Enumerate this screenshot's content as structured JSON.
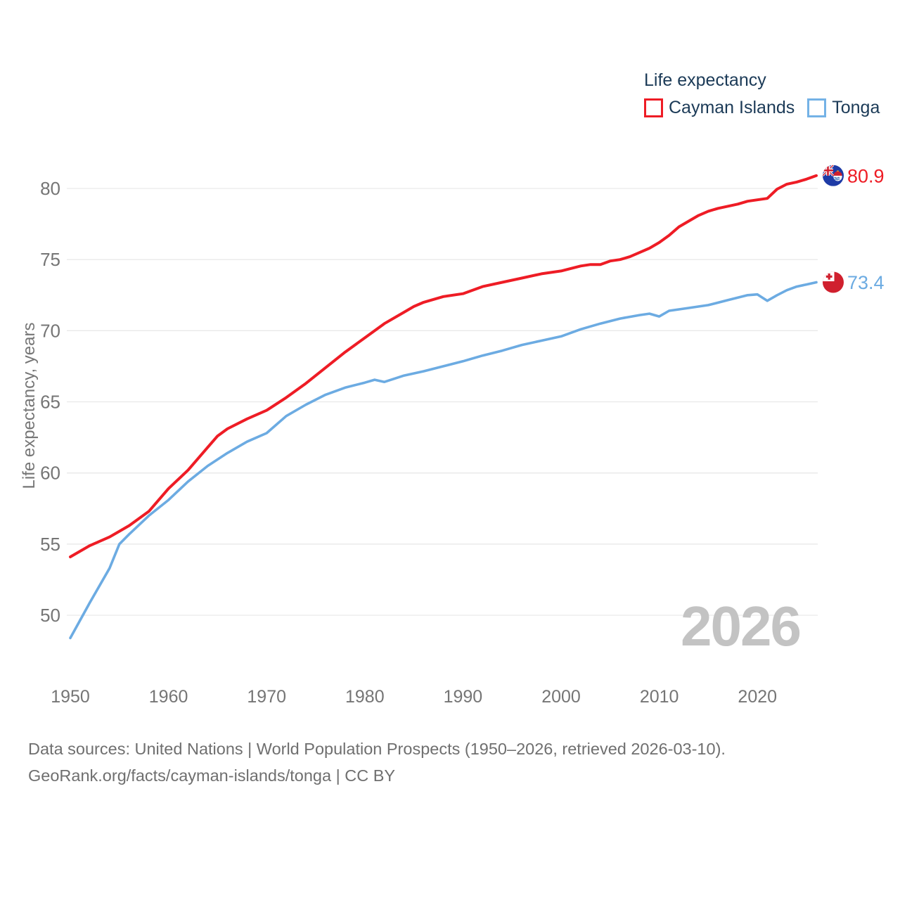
{
  "legend": {
    "title": "Life expectancy",
    "items": [
      {
        "label": "Cayman Islands",
        "color": "#ee1c25"
      },
      {
        "label": "Tonga",
        "color": "#74b2e6"
      }
    ]
  },
  "y_axis": {
    "title": "Life expectancy, years",
    "ticks": [
      50,
      55,
      60,
      65,
      70,
      75,
      80
    ]
  },
  "x_axis": {
    "ticks": [
      1950,
      1960,
      1970,
      1980,
      1990,
      2000,
      2010,
      2020
    ]
  },
  "watermark": "2026",
  "footer": {
    "line1": "Data sources: United Nations | World Population Prospects (1950–2026, retrieved 2026-03-10).",
    "line2": "GeoRank.org/facts/cayman-islands/tonga | CC BY"
  },
  "colors": {
    "cayman_line": "#ee1c25",
    "tonga_line": "#6cabe2",
    "legend_text": "#1b3a57",
    "tick_text": "#757575",
    "gridline": "#e9e9e9",
    "watermark": "#c3c3c3",
    "footer_text": "#6f6f6f"
  },
  "chart_data": {
    "type": "line",
    "title": "Life expectancy",
    "xlabel": "",
    "ylabel": "Life expectancy, years",
    "xlim": [
      1950,
      2026
    ],
    "ylim": [
      47,
      82
    ],
    "grid": true,
    "legend_position": "top-right",
    "series": [
      {
        "name": "Cayman Islands",
        "color": "#ee1c25",
        "end_label": "80.9",
        "end_year": 2026,
        "flag_icon": "cayman-islands-flag-icon",
        "points": [
          [
            1950,
            54.1
          ],
          [
            1952,
            54.9
          ],
          [
            1954,
            55.5
          ],
          [
            1956,
            56.3
          ],
          [
            1958,
            57.3
          ],
          [
            1960,
            58.9
          ],
          [
            1962,
            60.2
          ],
          [
            1964,
            61.8
          ],
          [
            1965,
            62.6
          ],
          [
            1966,
            63.1
          ],
          [
            1968,
            63.8
          ],
          [
            1970,
            64.4
          ],
          [
            1972,
            65.3
          ],
          [
            1974,
            66.3
          ],
          [
            1976,
            67.4
          ],
          [
            1978,
            68.5
          ],
          [
            1980,
            69.5
          ],
          [
            1982,
            70.5
          ],
          [
            1984,
            71.3
          ],
          [
            1985,
            71.7
          ],
          [
            1986,
            72.0
          ],
          [
            1988,
            72.4
          ],
          [
            1990,
            72.6
          ],
          [
            1992,
            73.1
          ],
          [
            1994,
            73.4
          ],
          [
            1996,
            73.7
          ],
          [
            1998,
            74.0
          ],
          [
            2000,
            74.2
          ],
          [
            2002,
            74.55
          ],
          [
            2003,
            74.65
          ],
          [
            2004,
            74.65
          ],
          [
            2005,
            74.9
          ],
          [
            2006,
            75.0
          ],
          [
            2007,
            75.2
          ],
          [
            2008,
            75.5
          ],
          [
            2009,
            75.8
          ],
          [
            2010,
            76.2
          ],
          [
            2011,
            76.7
          ],
          [
            2012,
            77.3
          ],
          [
            2013,
            77.7
          ],
          [
            2014,
            78.1
          ],
          [
            2015,
            78.4
          ],
          [
            2016,
            78.6
          ],
          [
            2017,
            78.75
          ],
          [
            2018,
            78.9
          ],
          [
            2019,
            79.1
          ],
          [
            2020,
            79.2
          ],
          [
            2021,
            79.3
          ],
          [
            2022,
            79.95
          ],
          [
            2023,
            80.3
          ],
          [
            2024,
            80.45
          ],
          [
            2025,
            80.65
          ],
          [
            2026,
            80.9
          ]
        ]
      },
      {
        "name": "Tonga",
        "color": "#6cabe2",
        "end_label": "73.4",
        "end_year": 2026,
        "flag_icon": "tonga-flag-icon",
        "points": [
          [
            1950,
            48.4
          ],
          [
            1952,
            50.9
          ],
          [
            1954,
            53.3
          ],
          [
            1955,
            55.0
          ],
          [
            1956,
            55.7
          ],
          [
            1958,
            57.0
          ],
          [
            1960,
            58.1
          ],
          [
            1962,
            59.4
          ],
          [
            1964,
            60.5
          ],
          [
            1966,
            61.4
          ],
          [
            1968,
            62.2
          ],
          [
            1970,
            62.8
          ],
          [
            1972,
            64.0
          ],
          [
            1974,
            64.8
          ],
          [
            1976,
            65.5
          ],
          [
            1978,
            66.0
          ],
          [
            1980,
            66.35
          ],
          [
            1981,
            66.55
          ],
          [
            1982,
            66.4
          ],
          [
            1984,
            66.85
          ],
          [
            1986,
            67.15
          ],
          [
            1988,
            67.5
          ],
          [
            1990,
            67.85
          ],
          [
            1992,
            68.25
          ],
          [
            1994,
            68.6
          ],
          [
            1996,
            69.0
          ],
          [
            1998,
            69.3
          ],
          [
            2000,
            69.6
          ],
          [
            2002,
            70.1
          ],
          [
            2004,
            70.5
          ],
          [
            2006,
            70.85
          ],
          [
            2008,
            71.1
          ],
          [
            2009,
            71.2
          ],
          [
            2010,
            71.0
          ],
          [
            2011,
            71.4
          ],
          [
            2013,
            71.6
          ],
          [
            2015,
            71.8
          ],
          [
            2017,
            72.15
          ],
          [
            2019,
            72.5
          ],
          [
            2020,
            72.55
          ],
          [
            2021,
            72.1
          ],
          [
            2022,
            72.5
          ],
          [
            2023,
            72.85
          ],
          [
            2024,
            73.1
          ],
          [
            2025,
            73.25
          ],
          [
            2026,
            73.4
          ]
        ]
      }
    ]
  }
}
